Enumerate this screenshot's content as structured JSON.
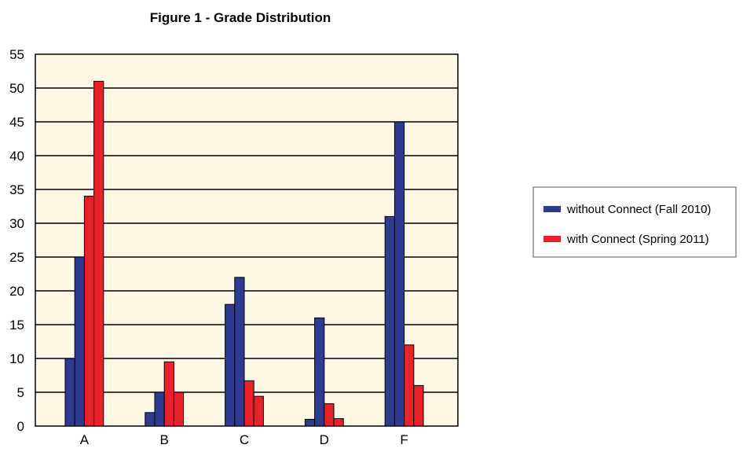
{
  "colors": {
    "plot_background": "#fdf7e6",
    "grid": "#000000",
    "series_1": "#2e3b8f",
    "series_2": "#e8212b"
  },
  "chart_data": {
    "type": "bar",
    "title": "Figure 1 - Grade Distribution",
    "xlabel": "",
    "ylabel": "",
    "categories": [
      "A",
      "B",
      "C",
      "D",
      "F"
    ],
    "ylim": [
      0,
      55
    ],
    "yticks": [
      0,
      5,
      10,
      15,
      20,
      25,
      30,
      35,
      40,
      45,
      50,
      55
    ],
    "grid": true,
    "legend_position": "right",
    "series": [
      {
        "name": "without Connect (Fall 2010)",
        "bars": [
          [
            10,
            25
          ],
          [
            2,
            5
          ],
          [
            18,
            22
          ],
          [
            1,
            16
          ],
          [
            31,
            45
          ]
        ]
      },
      {
        "name": "with Connect (Spring 2011)",
        "bars": [
          [
            34,
            51
          ],
          [
            9.5,
            5
          ],
          [
            6.7,
            4.4
          ],
          [
            3.3,
            1.1
          ],
          [
            12,
            6
          ]
        ]
      }
    ]
  }
}
